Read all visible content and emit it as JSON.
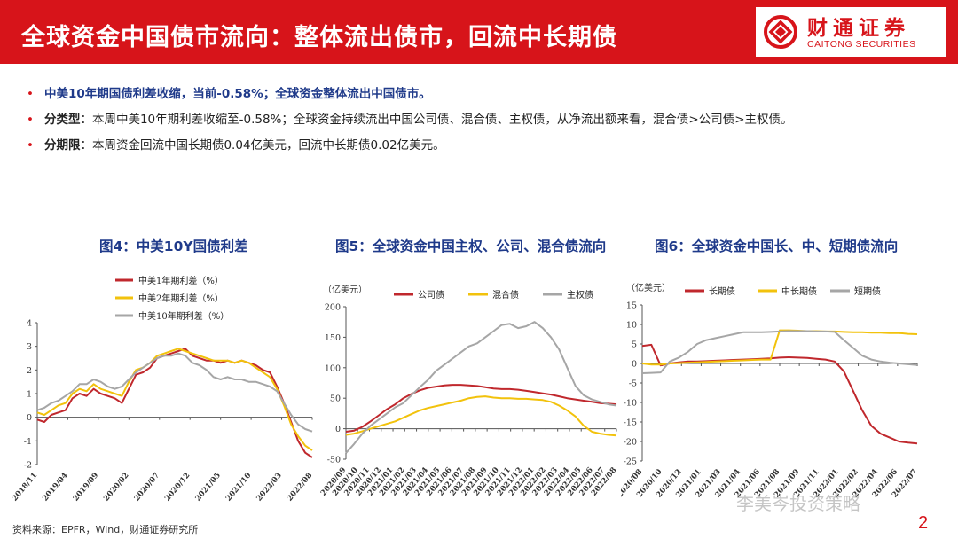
{
  "header": {
    "title": "全球资金中国债市流向：整体流出债市，回流中长期债",
    "logo_cn": "财通证券",
    "logo_en": "CAITONG SECURITIES",
    "brand_color": "#d7141a"
  },
  "bullets": [
    {
      "lead": "中美10年期国债利差收缩，当前-0.58%；全球资金整体流出中国债市。",
      "text": ""
    },
    {
      "lead": "分类型",
      "text": "：本周中美10年期利差收缩至-0.58%；全球资金持续流出中国公司债、混合债、主权债，从净流出额来看，混合债>公司债>主权债。"
    },
    {
      "lead": "分期限",
      "text": "：本周资金回流中国长期债0.04亿美元，回流中长期债0.02亿美元。"
    }
  ],
  "chart_titles": [
    "图4：中美10Y国债利差",
    "图5：全球资金中国主权、公司、混合债流向",
    "图6：全球资金中国长、中、短期债流向"
  ],
  "chart_data": [
    {
      "type": "line",
      "title": "图4：中美10Y国债利差",
      "unit": "",
      "ylim": [
        -2,
        4
      ],
      "yticks": [
        -2,
        -1,
        0,
        1,
        2,
        3,
        4
      ],
      "xticks": [
        "2018/11",
        "2019/04",
        "2019/09",
        "2020/02",
        "2020/07",
        "2020/12",
        "2021/05",
        "2021/10",
        "2022/03",
        "2022/08"
      ],
      "grid": false,
      "legend": "top-left",
      "series": [
        {
          "name": "中美1年期利差（%）",
          "color": "#c0282d",
          "values": [
            -0.1,
            -0.2,
            0.1,
            0.2,
            0.3,
            0.8,
            1.0,
            0.9,
            1.2,
            1.0,
            0.9,
            0.8,
            0.6,
            1.2,
            1.8,
            1.9,
            2.1,
            2.5,
            2.6,
            2.7,
            2.8,
            2.9,
            2.6,
            2.5,
            2.4,
            2.4,
            2.3,
            2.4,
            2.3,
            2.4,
            2.3,
            2.2,
            2.0,
            1.9,
            1.3,
            0.6,
            -0.2,
            -1.0,
            -1.5,
            -1.7
          ]
        },
        {
          "name": "中美2年期利差（%）",
          "color": "#f2c20c",
          "values": [
            0.2,
            0.1,
            0.3,
            0.5,
            0.6,
            1.0,
            1.2,
            1.1,
            1.4,
            1.2,
            1.1,
            1.0,
            0.9,
            1.5,
            2.0,
            2.1,
            2.3,
            2.6,
            2.7,
            2.8,
            2.9,
            2.8,
            2.7,
            2.6,
            2.5,
            2.4,
            2.4,
            2.4,
            2.3,
            2.4,
            2.3,
            2.1,
            1.9,
            1.7,
            1.2,
            0.5,
            -0.3,
            -0.8,
            -1.2,
            -1.4
          ]
        },
        {
          "name": "中美10年期利差（%）",
          "color": "#a6a6a6",
          "values": [
            0.3,
            0.4,
            0.6,
            0.7,
            0.9,
            1.1,
            1.4,
            1.4,
            1.6,
            1.5,
            1.3,
            1.2,
            1.3,
            1.6,
            1.9,
            2.1,
            2.3,
            2.5,
            2.6,
            2.6,
            2.7,
            2.6,
            2.3,
            2.2,
            2.0,
            1.7,
            1.6,
            1.7,
            1.6,
            1.6,
            1.5,
            1.5,
            1.4,
            1.3,
            1.1,
            0.6,
            0.1,
            -0.3,
            -0.5,
            -0.6
          ]
        }
      ]
    },
    {
      "type": "line",
      "title": "图5：全球资金中国主权、公司、混合债流向",
      "unit": "（亿美元）",
      "ylim": [
        -50,
        200
      ],
      "yticks": [
        -50,
        0,
        50,
        100,
        150,
        200
      ],
      "xticks": [
        "2020/09",
        "2020/10",
        "2020/11",
        "2020/12",
        "2021/01",
        "2021/02",
        "2021/03",
        "2021/04",
        "2021/05",
        "2021/06",
        "2021/07",
        "2021/08",
        "2021/09",
        "2021/10",
        "2021/11",
        "2021/12",
        "2022/01",
        "2022/02",
        "2022/03",
        "2022/04",
        "2022/05",
        "2022/06",
        "2022/07",
        "2022/08"
      ],
      "grid": false,
      "legend": "top",
      "series": [
        {
          "name": "公司债",
          "color": "#c0282d",
          "values": [
            -5,
            -3,
            3,
            12,
            22,
            32,
            40,
            50,
            57,
            63,
            67,
            69,
            71,
            72,
            72,
            71,
            70,
            68,
            66,
            65,
            65,
            64,
            62,
            60,
            58,
            56,
            53,
            50,
            48,
            46,
            44,
            42,
            41,
            40
          ]
        },
        {
          "name": "混合债",
          "color": "#f2c20c",
          "values": [
            -10,
            -8,
            -4,
            0,
            4,
            8,
            12,
            18,
            24,
            30,
            34,
            37,
            40,
            43,
            46,
            50,
            52,
            53,
            51,
            50,
            50,
            49,
            49,
            48,
            47,
            44,
            38,
            30,
            20,
            5,
            -5,
            -8,
            -10,
            -11
          ]
        },
        {
          "name": "主权债",
          "color": "#a6a6a6",
          "values": [
            -40,
            -25,
            -8,
            5,
            15,
            25,
            35,
            42,
            55,
            68,
            80,
            95,
            105,
            115,
            125,
            135,
            140,
            150,
            160,
            170,
            172,
            165,
            168,
            175,
            165,
            150,
            130,
            100,
            70,
            55,
            48,
            44,
            40,
            38
          ]
        }
      ]
    },
    {
      "type": "line",
      "title": "图6：全球资金中国长、中、短期债流向",
      "unit": "（亿美元）",
      "ylim": [
        -25,
        15
      ],
      "yticks": [
        -25,
        -20,
        -15,
        -10,
        -5,
        0,
        5,
        10,
        15
      ],
      "xticks": [
        "2020/08",
        "2020/10",
        "2020/12",
        "2021/01",
        "2021/03",
        "2021/04",
        "2021/06",
        "2021/08",
        "2021/09",
        "2021/11",
        "2022/01",
        "2022/02",
        "2022/04",
        "2022/06",
        "2022/07"
      ],
      "grid": false,
      "legend": "top",
      "series": [
        {
          "name": "长期债",
          "color": "#c0282d",
          "values": [
            4.5,
            4.8,
            -0.5,
            0,
            0.3,
            0.5,
            0.5,
            0.6,
            0.7,
            0.8,
            0.9,
            1.0,
            1.1,
            1.2,
            1.3,
            1.5,
            1.6,
            1.5,
            1.4,
            1.2,
            1.0,
            0.5,
            -2,
            -7,
            -12,
            -16,
            -18,
            -19,
            -20,
            -20.3,
            -20.5
          ]
        },
        {
          "name": "中长期债",
          "color": "#f2c20c",
          "values": [
            0,
            -0.3,
            -0.3,
            0,
            0.1,
            0.2,
            0.3,
            0.4,
            0.5,
            0.6,
            0.7,
            0.8,
            0.9,
            1.0,
            1.0,
            8.5,
            8.5,
            8.4,
            8.3,
            8.3,
            8.2,
            8.2,
            8.1,
            8.0,
            8.0,
            7.9,
            7.9,
            7.8,
            7.8,
            7.6,
            7.5
          ]
        },
        {
          "name": "短期债",
          "color": "#a6a6a6",
          "values": [
            -2.5,
            -2.4,
            -2.3,
            0.5,
            1.5,
            3,
            5,
            6,
            6.5,
            7,
            7.5,
            8,
            8,
            8,
            8.1,
            8.2,
            8.3,
            8.3,
            8.3,
            8.2,
            8.2,
            8.1,
            6,
            4,
            2,
            1,
            0.5,
            0.2,
            0,
            -0.2,
            -0.4
          ]
        }
      ]
    }
  ],
  "source": "资料来源：EPFR，Wind，财通证券研究所",
  "watermark": "李美岑投资策略",
  "page_number": "2"
}
